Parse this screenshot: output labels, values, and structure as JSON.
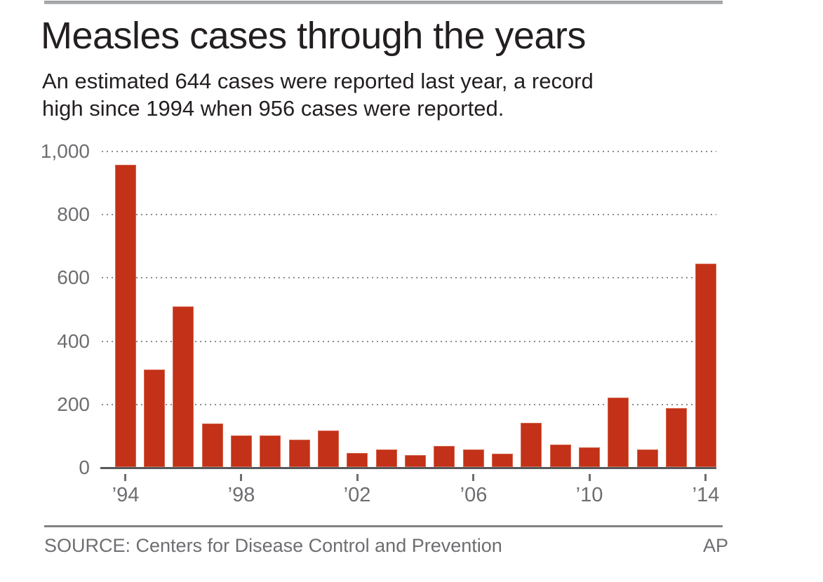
{
  "header": {
    "title": "Measles cases through the years",
    "subtitle_line1": "An estimated 644 cases were reported last year, a record",
    "subtitle_line2": "high since 1994 when 956 cases were reported."
  },
  "chart_data": {
    "type": "bar",
    "title": "Measles cases through the years",
    "categories": [
      1994,
      1995,
      1996,
      1997,
      1998,
      1999,
      2000,
      2001,
      2002,
      2003,
      2004,
      2005,
      2006,
      2007,
      2008,
      2009,
      2010,
      2011,
      2012,
      2013,
      2014
    ],
    "values": [
      956,
      309,
      508,
      138,
      100,
      100,
      86,
      116,
      44,
      56,
      37,
      66,
      55,
      43,
      140,
      71,
      63,
      220,
      55,
      187,
      644
    ],
    "xlabel": "",
    "ylabel": "",
    "ylim": [
      0,
      1000
    ],
    "y_ticks": [
      0,
      200,
      400,
      600,
      800,
      1000
    ],
    "y_tick_labels": [
      "0",
      "200",
      "400",
      "600",
      "800",
      "1,000"
    ],
    "x_tick_marks": [
      {
        "index": 0,
        "label": "’94"
      },
      {
        "index": 4,
        "label": "’98"
      },
      {
        "index": 8,
        "label": "’02"
      },
      {
        "index": 12,
        "label": "’06"
      },
      {
        "index": 16,
        "label": "’10"
      },
      {
        "index": 20,
        "label": "’14"
      }
    ],
    "grid": "horizontal-dotted",
    "legend_position": "none",
    "bar_color": "#c23118",
    "grid_color": "#8a8c8f",
    "axis_color": "#58595b",
    "label_color": "#6d6e71",
    "text_color": "#231f20"
  },
  "footer": {
    "source": "SOURCE: Centers for Disease Control and Prevention",
    "credit": "AP"
  }
}
